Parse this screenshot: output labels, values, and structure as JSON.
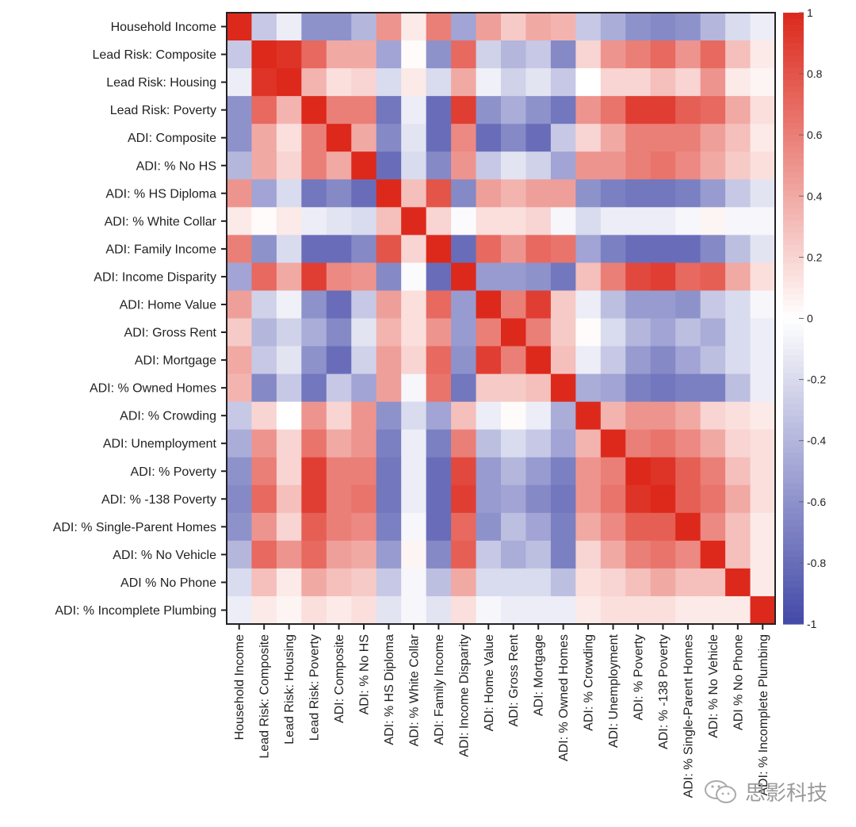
{
  "chart_data": {
    "type": "heatmap",
    "title": "",
    "xlabel": "",
    "ylabel": "",
    "labels": [
      "Household Income",
      "Lead Risk: Composite",
      "Lead Risk: Housing",
      "Lead Risk: Poverty",
      "ADI: Composite",
      "ADI: % No HS",
      "ADI: % HS Diploma",
      "ADI: % White Collar",
      "ADI: Family Income",
      "ADI: Income Disparity",
      "ADI: Home Value",
      "ADI: Gross Rent",
      "ADI: Mortgage",
      "ADI: % Owned Homes",
      "ADI: % Crowding",
      "ADI: Unemployment",
      "ADI: % Poverty",
      "ADI: % -138 Poverty",
      "ADI: % Single-Parent Homes",
      "ADI: % No Vehicle",
      "ADI % No Phone",
      "ADI: % Incomplete Plumbing"
    ],
    "x_tick_labels": [
      "Household Income",
      "Lead Risk: Composite",
      "Lead Risk: Housing",
      "Lead Risk: Poverty",
      "ADI: Composite",
      "ADI: % No HS",
      "ADI: % HS Diploma",
      "ADI: % White Collar",
      "ADI: Family Income",
      "ADI: Income Disparity",
      "ADI: Home Value",
      "ADI: Gross Rent",
      "ADI: Mortgage",
      "ADI: % Owned Homes",
      "ADI: % Crowding",
      "ADI: Unemployment",
      "ADI: % Poverty",
      "ADI: % -138 Poverty",
      "ADI: % Single-Parent Homes",
      "ADI: % No Vehicle",
      "ADI % No Phone",
      "ADI: % Incomplete Plumbing"
    ],
    "matrix": [
      [
        1.0,
        -0.3,
        -0.1,
        -0.6,
        -0.6,
        -0.4,
        0.5,
        0.1,
        0.6,
        -0.5,
        0.45,
        0.25,
        0.4,
        0.35,
        -0.3,
        -0.45,
        -0.6,
        -0.65,
        -0.6,
        -0.4,
        -0.2,
        -0.1
      ],
      [
        -0.3,
        1.0,
        0.95,
        0.7,
        0.4,
        0.4,
        -0.5,
        0.02,
        -0.6,
        0.7,
        -0.25,
        -0.4,
        -0.3,
        -0.65,
        0.2,
        0.5,
        0.6,
        0.7,
        0.5,
        0.7,
        0.3,
        0.1
      ],
      [
        -0.1,
        0.95,
        1.0,
        0.35,
        0.15,
        0.2,
        -0.2,
        0.1,
        -0.2,
        0.4,
        -0.08,
        -0.25,
        -0.15,
        -0.3,
        0.0,
        0.2,
        0.2,
        0.3,
        0.2,
        0.5,
        0.1,
        0.05
      ],
      [
        -0.6,
        0.7,
        0.35,
        1.0,
        0.6,
        0.6,
        -0.75,
        -0.1,
        -0.8,
        0.9,
        -0.6,
        -0.45,
        -0.6,
        -0.75,
        0.5,
        0.65,
        0.9,
        0.9,
        0.75,
        0.7,
        0.4,
        0.15
      ],
      [
        -0.6,
        0.4,
        0.15,
        0.6,
        1.0,
        0.4,
        -0.65,
        -0.15,
        -0.8,
        0.55,
        -0.8,
        -0.65,
        -0.8,
        -0.3,
        0.2,
        0.4,
        0.6,
        0.6,
        0.6,
        0.45,
        0.3,
        0.1
      ],
      [
        -0.4,
        0.4,
        0.2,
        0.6,
        0.4,
        1.0,
        -0.8,
        -0.2,
        -0.65,
        0.5,
        -0.3,
        -0.15,
        -0.25,
        -0.5,
        0.5,
        0.5,
        0.6,
        0.65,
        0.55,
        0.4,
        0.25,
        0.15
      ],
      [
        0.5,
        -0.5,
        -0.2,
        -0.75,
        -0.65,
        -0.8,
        1.0,
        0.3,
        0.8,
        -0.65,
        0.45,
        0.35,
        0.45,
        0.45,
        -0.6,
        -0.7,
        -0.75,
        -0.75,
        -0.7,
        -0.55,
        -0.3,
        -0.15
      ],
      [
        0.1,
        0.02,
        0.1,
        -0.1,
        -0.15,
        -0.2,
        0.3,
        1.0,
        0.2,
        -0.02,
        0.15,
        0.15,
        0.2,
        -0.05,
        -0.2,
        -0.1,
        -0.1,
        -0.1,
        -0.05,
        0.05,
        -0.05,
        -0.05
      ],
      [
        0.6,
        -0.6,
        -0.2,
        -0.8,
        -0.8,
        -0.65,
        0.8,
        0.2,
        1.0,
        -0.8,
        0.7,
        0.5,
        0.7,
        0.65,
        -0.5,
        -0.7,
        -0.8,
        -0.8,
        -0.8,
        -0.65,
        -0.35,
        -0.15
      ],
      [
        -0.5,
        0.7,
        0.4,
        0.9,
        0.55,
        0.5,
        -0.65,
        -0.02,
        -0.8,
        1.0,
        -0.55,
        -0.55,
        -0.6,
        -0.75,
        0.3,
        0.6,
        0.85,
        0.9,
        0.7,
        0.75,
        0.4,
        0.15
      ],
      [
        0.45,
        -0.25,
        -0.08,
        -0.6,
        -0.8,
        -0.3,
        0.45,
        0.15,
        0.7,
        -0.55,
        1.0,
        0.6,
        0.9,
        0.25,
        -0.1,
        -0.35,
        -0.55,
        -0.55,
        -0.6,
        -0.3,
        -0.2,
        -0.05
      ],
      [
        0.25,
        -0.4,
        -0.25,
        -0.45,
        -0.65,
        -0.15,
        0.35,
        0.15,
        0.5,
        -0.55,
        0.6,
        1.0,
        0.6,
        0.25,
        0.02,
        -0.2,
        -0.4,
        -0.5,
        -0.35,
        -0.45,
        -0.2,
        -0.1
      ],
      [
        0.4,
        -0.3,
        -0.15,
        -0.6,
        -0.8,
        -0.25,
        0.45,
        0.2,
        0.7,
        -0.6,
        0.9,
        0.6,
        1.0,
        0.3,
        -0.1,
        -0.3,
        -0.55,
        -0.65,
        -0.5,
        -0.35,
        -0.2,
        -0.1
      ],
      [
        0.35,
        -0.65,
        -0.3,
        -0.75,
        -0.3,
        -0.5,
        0.45,
        -0.05,
        0.65,
        -0.75,
        0.25,
        0.25,
        0.3,
        1.0,
        -0.45,
        -0.5,
        -0.7,
        -0.75,
        -0.7,
        -0.7,
        -0.35,
        -0.1
      ],
      [
        -0.3,
        0.2,
        0.0,
        0.5,
        0.2,
        0.5,
        -0.6,
        -0.2,
        -0.5,
        0.3,
        -0.1,
        0.02,
        -0.1,
        -0.45,
        1.0,
        0.35,
        0.5,
        0.5,
        0.4,
        0.2,
        0.15,
        0.1
      ],
      [
        -0.45,
        0.5,
        0.2,
        0.65,
        0.4,
        0.5,
        -0.7,
        -0.1,
        -0.7,
        0.6,
        -0.35,
        -0.2,
        -0.3,
        -0.5,
        0.35,
        1.0,
        0.6,
        0.65,
        0.55,
        0.4,
        0.2,
        0.15
      ],
      [
        -0.6,
        0.6,
        0.2,
        0.9,
        0.6,
        0.6,
        -0.75,
        -0.1,
        -0.8,
        0.85,
        -0.55,
        -0.4,
        -0.55,
        -0.7,
        0.5,
        0.6,
        1.0,
        0.95,
        0.75,
        0.6,
        0.3,
        0.15
      ],
      [
        -0.65,
        0.7,
        0.3,
        0.9,
        0.6,
        0.65,
        -0.75,
        -0.1,
        -0.8,
        0.9,
        -0.55,
        -0.5,
        -0.65,
        -0.75,
        0.5,
        0.65,
        0.95,
        1.0,
        0.75,
        0.65,
        0.4,
        0.15
      ],
      [
        -0.6,
        0.5,
        0.2,
        0.75,
        0.6,
        0.55,
        -0.7,
        -0.05,
        -0.8,
        0.7,
        -0.6,
        -0.35,
        -0.5,
        -0.7,
        0.4,
        0.55,
        0.75,
        0.75,
        1.0,
        0.55,
        0.3,
        0.1
      ],
      [
        -0.4,
        0.7,
        0.5,
        0.7,
        0.45,
        0.4,
        -0.55,
        0.05,
        -0.65,
        0.75,
        -0.3,
        -0.45,
        -0.35,
        -0.7,
        0.2,
        0.4,
        0.6,
        0.65,
        0.55,
        1.0,
        0.3,
        0.1
      ],
      [
        -0.2,
        0.3,
        0.1,
        0.4,
        0.3,
        0.25,
        -0.3,
        -0.05,
        -0.35,
        0.4,
        -0.2,
        -0.2,
        -0.2,
        -0.35,
        0.15,
        0.2,
        0.3,
        0.4,
        0.3,
        0.3,
        1.0,
        0.1
      ],
      [
        -0.1,
        0.1,
        0.05,
        0.15,
        0.1,
        0.15,
        -0.15,
        -0.05,
        -0.15,
        0.15,
        -0.05,
        -0.1,
        -0.1,
        -0.1,
        0.1,
        0.15,
        0.15,
        0.15,
        0.1,
        0.1,
        0.1,
        1.0
      ]
    ],
    "value_range": [
      -1,
      1
    ],
    "colormap": {
      "low": "#4349a8",
      "mid": "#ffffff",
      "high": "#dc291c"
    },
    "colorbar": {
      "ticks": [
        1,
        0.8,
        0.6,
        0.4,
        0.2,
        0,
        -0.2,
        -0.4,
        -0.6,
        -0.8,
        -1
      ],
      "tick_labels": [
        "1",
        "0.8",
        "0.6",
        "0.4",
        "0.2",
        "0",
        "-0.2",
        "-0.4",
        "-0.6",
        "-0.8",
        "-1"
      ],
      "position": "right"
    },
    "grid": false
  },
  "watermark": {
    "text": "思影科技",
    "icon": "wechat-icon"
  }
}
